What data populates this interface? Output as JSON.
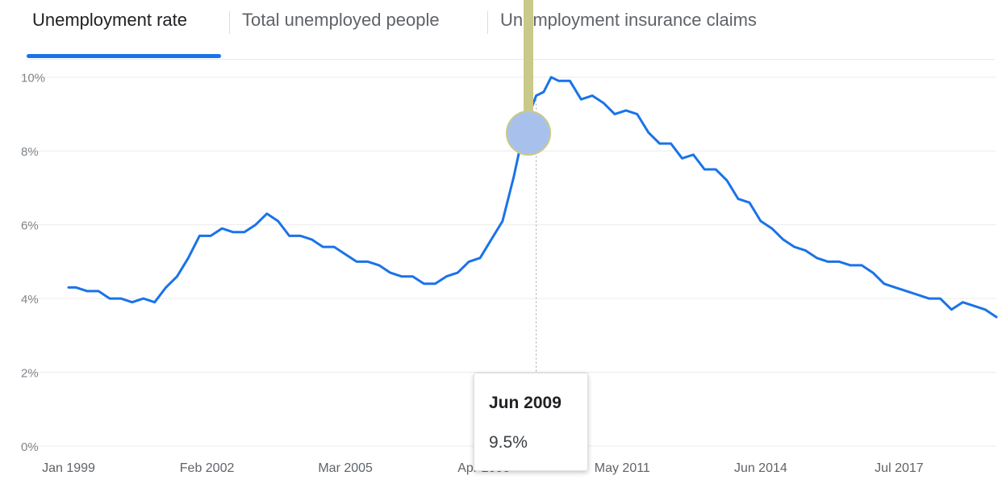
{
  "tabs": [
    {
      "label": "Unemployment rate",
      "active": true
    },
    {
      "label": "Total unemployed people",
      "active": false
    },
    {
      "label": "Unemployment insurance claims",
      "active": false
    }
  ],
  "tooltip": {
    "date": "Jun 2009",
    "value": "9.5%"
  },
  "colors": {
    "line": "#1a73e8",
    "accent": "#1a73e8",
    "grid": "#ebebeb",
    "marker_fill": "#a8c1ec",
    "marker_stem": "#c9c98a"
  },
  "chart_data": {
    "type": "line",
    "title": "",
    "xlabel": "",
    "ylabel": "",
    "ylim": [
      0,
      11
    ],
    "yticks": [
      0,
      2,
      4,
      6,
      8,
      10
    ],
    "ytick_labels": [
      "0%",
      "2%",
      "4%",
      "6%",
      "8%",
      "10%"
    ],
    "xlim": [
      "1999-01",
      "2019-09"
    ],
    "xticks": [
      "1999-01",
      "2002-02",
      "2005-03",
      "2008-04",
      "2011-05",
      "2014-06",
      "2017-07"
    ],
    "xtick_labels": [
      "Jan 1999",
      "Feb 2002",
      "Mar 2005",
      "Apr 2008",
      "May 2011",
      "Jun 2014",
      "Jul 2017"
    ],
    "grid": true,
    "highlight": {
      "x": "2009-06",
      "y": 9.5
    },
    "series": [
      {
        "x": [
          "1999-01",
          "1999-03",
          "1999-06",
          "1999-09",
          "1999-12",
          "2000-03",
          "2000-06",
          "2000-09",
          "2000-12",
          "2001-03",
          "2001-06",
          "2001-09",
          "2001-12",
          "2002-03",
          "2002-06",
          "2002-09",
          "2002-12",
          "2003-03",
          "2003-06",
          "2003-09",
          "2003-12",
          "2004-03",
          "2004-06",
          "2004-09",
          "2004-12",
          "2005-03",
          "2005-06",
          "2005-09",
          "2005-12",
          "2006-03",
          "2006-06",
          "2006-09",
          "2006-12",
          "2007-03",
          "2007-06",
          "2007-09",
          "2007-12",
          "2008-03",
          "2008-06",
          "2008-09",
          "2008-12",
          "2009-03",
          "2009-06",
          "2009-08",
          "2009-10",
          "2009-12",
          "2010-03",
          "2010-06",
          "2010-09",
          "2010-12",
          "2011-03",
          "2011-06",
          "2011-09",
          "2011-12",
          "2012-03",
          "2012-06",
          "2012-09",
          "2012-12",
          "2013-03",
          "2013-06",
          "2013-09",
          "2013-12",
          "2014-03",
          "2014-06",
          "2014-09",
          "2014-12",
          "2015-03",
          "2015-06",
          "2015-09",
          "2015-12",
          "2016-03",
          "2016-06",
          "2016-09",
          "2016-12",
          "2017-03",
          "2017-06",
          "2017-09",
          "2017-12",
          "2018-03",
          "2018-06",
          "2018-09",
          "2018-12",
          "2019-03",
          "2019-06",
          "2019-09"
        ],
        "values": [
          4.3,
          4.3,
          4.2,
          4.2,
          4.0,
          4.0,
          3.9,
          4.0,
          3.9,
          4.3,
          4.6,
          5.1,
          5.7,
          5.7,
          5.9,
          5.8,
          5.8,
          6.0,
          6.3,
          6.1,
          5.7,
          5.7,
          5.6,
          5.4,
          5.4,
          5.2,
          5.0,
          5.0,
          4.9,
          4.7,
          4.6,
          4.6,
          4.4,
          4.4,
          4.6,
          4.7,
          5.0,
          5.1,
          5.6,
          6.1,
          7.3,
          8.7,
          9.5,
          9.6,
          10.0,
          9.9,
          9.9,
          9.4,
          9.5,
          9.3,
          9.0,
          9.1,
          9.0,
          8.5,
          8.2,
          8.2,
          7.8,
          7.9,
          7.5,
          7.5,
          7.2,
          6.7,
          6.6,
          6.1,
          5.9,
          5.6,
          5.4,
          5.3,
          5.1,
          5.0,
          5.0,
          4.9,
          4.9,
          4.7,
          4.4,
          4.3,
          4.2,
          4.1,
          4.0,
          4.0,
          3.7,
          3.9,
          3.8,
          3.7,
          3.5
        ]
      }
    ]
  }
}
